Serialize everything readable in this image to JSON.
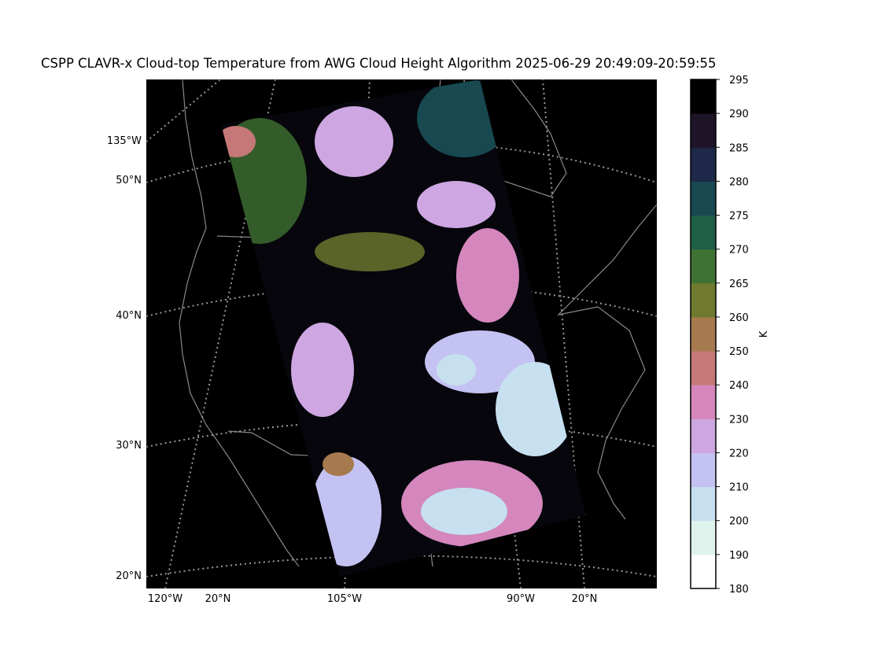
{
  "title": "CSPP CLAVR-x Cloud-top Temperature from AWG Cloud Height Algorithm 2025-06-29 20:49:09-20:59:55",
  "map": {
    "left_labels": [
      "135°W",
      "50°N",
      "40°N",
      "30°N",
      "20°N"
    ],
    "bottom_labels": [
      "120°W",
      "20°N",
      "105°W",
      "90°W",
      "20°N"
    ]
  },
  "colorbar": {
    "label": "K",
    "ticks": [
      180,
      190,
      200,
      210,
      220,
      230,
      240,
      250,
      260,
      265,
      270,
      275,
      280,
      285,
      290,
      295
    ],
    "colors": [
      "#ffffff",
      "#ddf3ec",
      "#c6e0f0",
      "#c4c2f2",
      "#cea6e2",
      "#d486bd",
      "#c67878",
      "#a67a4e",
      "#6f7a30",
      "#3f7232",
      "#1f5f45",
      "#184850",
      "#1e2848",
      "#1e1428",
      "#000000"
    ]
  }
}
